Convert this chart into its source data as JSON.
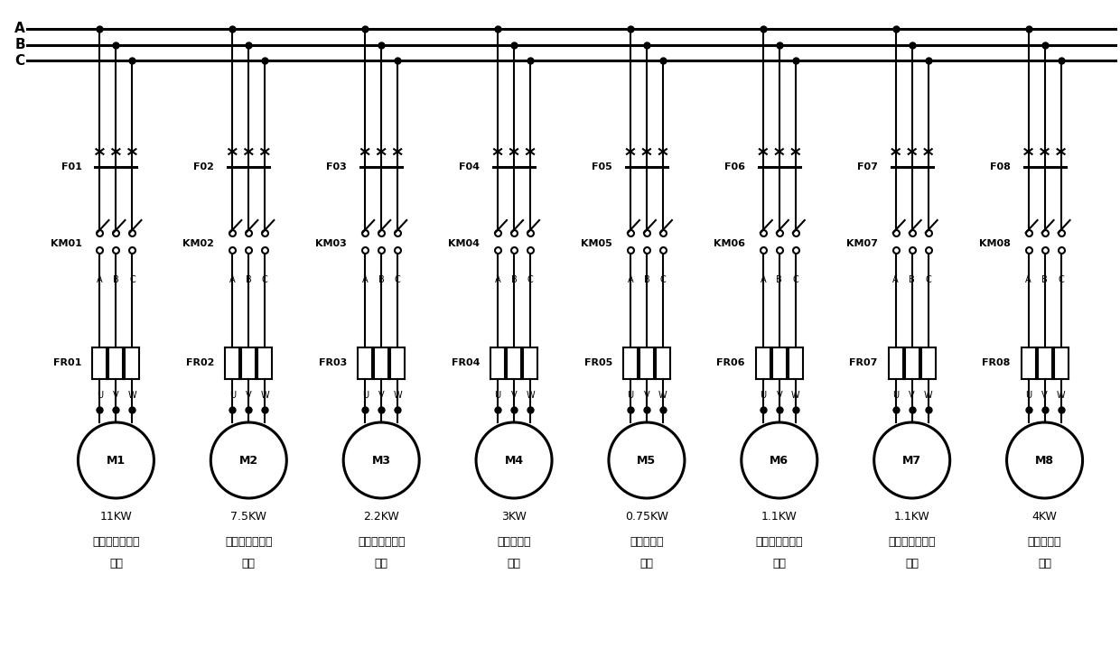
{
  "bg_color": "#ffffff",
  "line_color": "#000000",
  "num_circuits": 8,
  "circuit_labels": [
    "F01",
    "F02",
    "F03",
    "F04",
    "F05",
    "F06",
    "F07",
    "F08"
  ],
  "km_labels": [
    "KM01",
    "KM02",
    "KM03",
    "KM04",
    "KM05",
    "KM06",
    "KM07",
    "KM08"
  ],
  "fr_labels": [
    "FR01",
    "FR02",
    "FR03",
    "FR04",
    "FR05",
    "FR06",
    "FR07",
    "FR08"
  ],
  "motor_labels": [
    "M1",
    "M2",
    "M3",
    "M4",
    "M5",
    "M6",
    "M7",
    "M8"
  ],
  "power_labels": [
    "11KW",
    "7.5KW",
    "2.2KW",
    "3KW",
    "0.75KW",
    "1.1KW",
    "1.1KW",
    "4KW"
  ],
  "desc_line1": [
    "飞灰螺旋输送机",
    "水泥螺旋输送机",
    "飞灰叶轮给料机",
    "皮带输送机",
    "药剂原液泵",
    "第一药剂管道泵",
    "第二药剂管道泵",
    "稀释搞拌机"
  ],
  "desc_line2": [
    "回路",
    "回路",
    "回路",
    "回路",
    "回路",
    "回路",
    "回路",
    "回路"
  ],
  "bus_labels": [
    "A",
    "B",
    "C"
  ],
  "uvw_labels": [
    "U",
    "V",
    "W"
  ],
  "abc_labels": [
    "A",
    "B",
    "C"
  ],
  "fig_width": 12.4,
  "fig_height": 7.28
}
